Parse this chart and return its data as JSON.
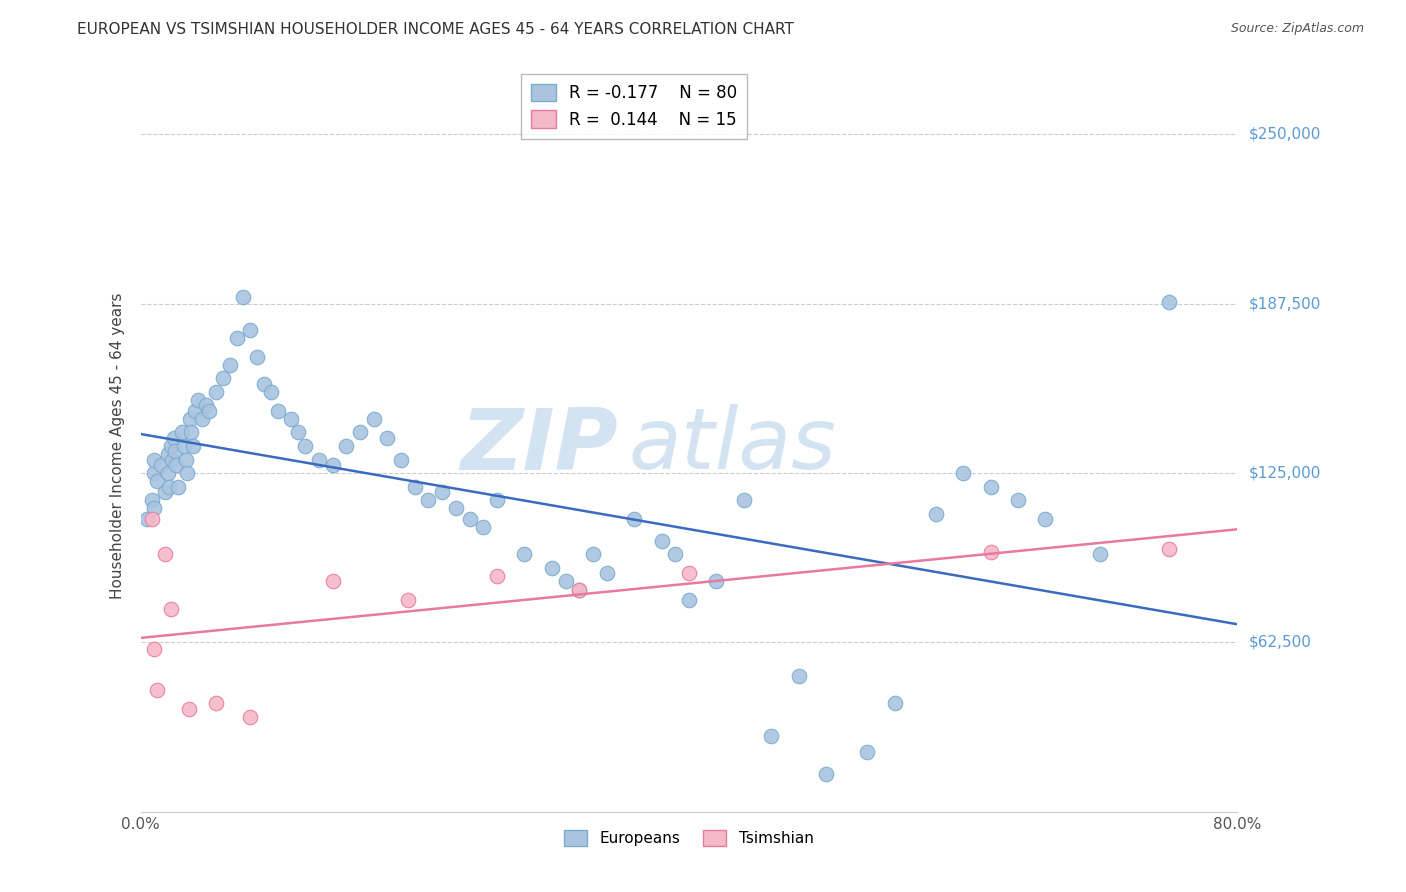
{
  "title": "EUROPEAN VS TSIMSHIAN HOUSEHOLDER INCOME AGES 45 - 64 YEARS CORRELATION CHART",
  "source": "Source: ZipAtlas.com",
  "ylabel": "Householder Income Ages 45 - 64 years",
  "ytick_labels": [
    "$62,500",
    "$125,000",
    "$187,500",
    "$250,000"
  ],
  "ytick_values": [
    62500,
    125000,
    187500,
    250000
  ],
  "ymin": 0,
  "ymax": 270000,
  "xmin": 0.0,
  "xmax": 0.8,
  "european_color": "#aac4e0",
  "european_edge_color": "#7aabcc",
  "tsimshian_color": "#f5b8c8",
  "tsimshian_edge_color": "#e87aa0",
  "blue_line_color": "#3a6bbf",
  "pink_line_color": "#e87aa0",
  "legend_R_european": "R = -0.177",
  "legend_N_european": "N = 80",
  "legend_R_tsimshian": "R =  0.144",
  "legend_N_tsimshian": "N = 15",
  "background_color": "#ffffff",
  "grid_color": "#cccccc",
  "marker_size": 110,
  "european_x": [
    0.005,
    0.008,
    0.01,
    0.01,
    0.01,
    0.012,
    0.015,
    0.018,
    0.02,
    0.02,
    0.021,
    0.022,
    0.023,
    0.024,
    0.025,
    0.026,
    0.027,
    0.03,
    0.032,
    0.033,
    0.034,
    0.036,
    0.037,
    0.038,
    0.04,
    0.042,
    0.045,
    0.048,
    0.05,
    0.055,
    0.06,
    0.065,
    0.07,
    0.075,
    0.08,
    0.085,
    0.09,
    0.095,
    0.1,
    0.11,
    0.115,
    0.12,
    0.13,
    0.14,
    0.15,
    0.16,
    0.17,
    0.18,
    0.19,
    0.2,
    0.21,
    0.22,
    0.23,
    0.24,
    0.25,
    0.26,
    0.28,
    0.3,
    0.31,
    0.32,
    0.33,
    0.34,
    0.36,
    0.38,
    0.39,
    0.4,
    0.42,
    0.44,
    0.46,
    0.48,
    0.5,
    0.53,
    0.55,
    0.58,
    0.6,
    0.62,
    0.64,
    0.66,
    0.7,
    0.75
  ],
  "european_y": [
    108000,
    115000,
    112000,
    125000,
    130000,
    122000,
    128000,
    118000,
    132000,
    125000,
    120000,
    135000,
    130000,
    138000,
    133000,
    128000,
    120000,
    140000,
    135000,
    130000,
    125000,
    145000,
    140000,
    135000,
    148000,
    152000,
    145000,
    150000,
    148000,
    155000,
    160000,
    165000,
    175000,
    190000,
    178000,
    168000,
    158000,
    155000,
    148000,
    145000,
    140000,
    135000,
    130000,
    128000,
    135000,
    140000,
    145000,
    138000,
    130000,
    120000,
    115000,
    118000,
    112000,
    108000,
    105000,
    115000,
    95000,
    90000,
    85000,
    82000,
    95000,
    88000,
    108000,
    100000,
    95000,
    78000,
    85000,
    115000,
    28000,
    50000,
    14000,
    22000,
    40000,
    110000,
    125000,
    120000,
    115000,
    108000,
    95000,
    188000
  ],
  "tsimshian_x": [
    0.008,
    0.01,
    0.012,
    0.018,
    0.022,
    0.035,
    0.055,
    0.08,
    0.14,
    0.195,
    0.26,
    0.32,
    0.4,
    0.62,
    0.75
  ],
  "tsimshian_y": [
    108000,
    60000,
    45000,
    95000,
    75000,
    38000,
    40000,
    35000,
    85000,
    78000,
    87000,
    82000,
    88000,
    96000,
    97000
  ]
}
